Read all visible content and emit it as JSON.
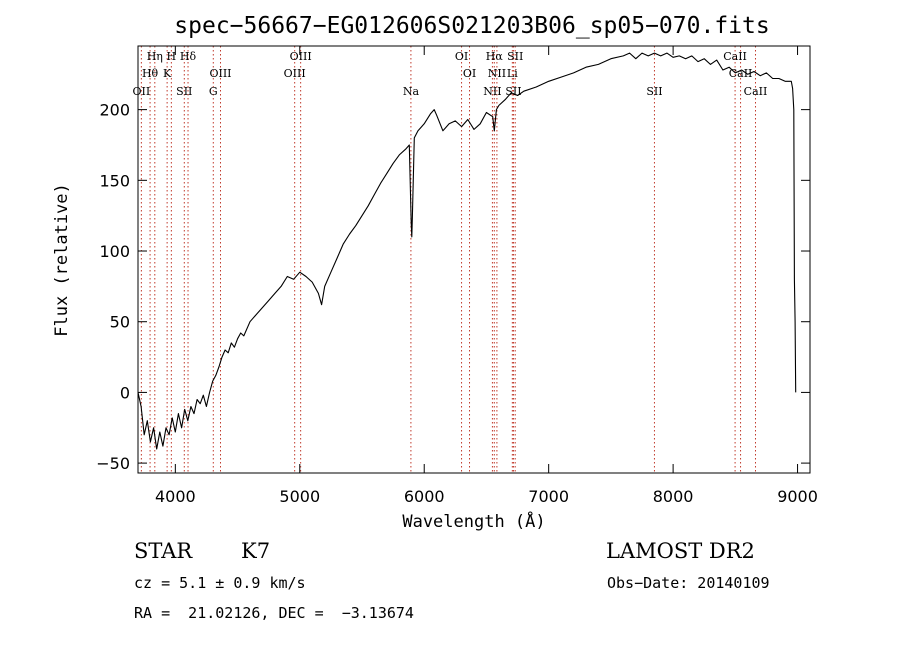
{
  "chart_data": {
    "type": "line",
    "title": "spec−56667−EG012606S021203B06_sp05−070.fits",
    "xlabel": "Wavelength (Å)",
    "ylabel": "Flux (relative)",
    "xlim": [
      3700,
      9100
    ],
    "ylim": [
      -57,
      245
    ],
    "xticks": [
      4000,
      5000,
      6000,
      7000,
      8000,
      9000
    ],
    "yticks": [
      -50,
      0,
      50,
      100,
      150,
      200
    ],
    "grid": false,
    "series": [
      {
        "color": "#000000",
        "points": [
          [
            3700,
            0
          ],
          [
            3725,
            -10
          ],
          [
            3750,
            -30
          ],
          [
            3775,
            -20
          ],
          [
            3800,
            -35
          ],
          [
            3825,
            -25
          ],
          [
            3850,
            -40
          ],
          [
            3875,
            -28
          ],
          [
            3900,
            -38
          ],
          [
            3925,
            -25
          ],
          [
            3950,
            -30
          ],
          [
            3975,
            -18
          ],
          [
            4000,
            -28
          ],
          [
            4025,
            -15
          ],
          [
            4050,
            -25
          ],
          [
            4075,
            -12
          ],
          [
            4100,
            -20
          ],
          [
            4125,
            -10
          ],
          [
            4150,
            -15
          ],
          [
            4175,
            -5
          ],
          [
            4200,
            -8
          ],
          [
            4225,
            -2
          ],
          [
            4250,
            -10
          ],
          [
            4275,
            0
          ],
          [
            4300,
            8
          ],
          [
            4325,
            12
          ],
          [
            4350,
            18
          ],
          [
            4375,
            25
          ],
          [
            4400,
            30
          ],
          [
            4425,
            28
          ],
          [
            4450,
            35
          ],
          [
            4475,
            32
          ],
          [
            4500,
            38
          ],
          [
            4525,
            42
          ],
          [
            4550,
            40
          ],
          [
            4600,
            50
          ],
          [
            4650,
            55
          ],
          [
            4700,
            60
          ],
          [
            4750,
            65
          ],
          [
            4800,
            70
          ],
          [
            4850,
            75
          ],
          [
            4900,
            82
          ],
          [
            4950,
            80
          ],
          [
            5000,
            85
          ],
          [
            5050,
            82
          ],
          [
            5100,
            78
          ],
          [
            5150,
            70
          ],
          [
            5175,
            62
          ],
          [
            5200,
            75
          ],
          [
            5250,
            85
          ],
          [
            5300,
            95
          ],
          [
            5350,
            105
          ],
          [
            5400,
            112
          ],
          [
            5450,
            118
          ],
          [
            5500,
            125
          ],
          [
            5550,
            132
          ],
          [
            5600,
            140
          ],
          [
            5650,
            148
          ],
          [
            5700,
            155
          ],
          [
            5750,
            162
          ],
          [
            5800,
            168
          ],
          [
            5850,
            172
          ],
          [
            5880,
            175
          ],
          [
            5895,
            120
          ],
          [
            5900,
            110
          ],
          [
            5905,
            125
          ],
          [
            5920,
            180
          ],
          [
            5950,
            185
          ],
          [
            6000,
            190
          ],
          [
            6050,
            197
          ],
          [
            6080,
            200
          ],
          [
            6100,
            196
          ],
          [
            6150,
            185
          ],
          [
            6200,
            190
          ],
          [
            6250,
            192
          ],
          [
            6300,
            188
          ],
          [
            6350,
            193
          ],
          [
            6400,
            186
          ],
          [
            6450,
            190
          ],
          [
            6500,
            198
          ],
          [
            6550,
            195
          ],
          [
            6563,
            185
          ],
          [
            6580,
            200
          ],
          [
            6600,
            203
          ],
          [
            6650,
            207
          ],
          [
            6700,
            212
          ],
          [
            6750,
            210
          ],
          [
            6800,
            213
          ],
          [
            6900,
            216
          ],
          [
            7000,
            220
          ],
          [
            7100,
            223
          ],
          [
            7200,
            226
          ],
          [
            7300,
            230
          ],
          [
            7400,
            232
          ],
          [
            7500,
            236
          ],
          [
            7600,
            238
          ],
          [
            7650,
            240
          ],
          [
            7700,
            236
          ],
          [
            7750,
            240
          ],
          [
            7800,
            238
          ],
          [
            7850,
            240
          ],
          [
            7900,
            238
          ],
          [
            7950,
            240
          ],
          [
            8000,
            237
          ],
          [
            8050,
            238
          ],
          [
            8100,
            236
          ],
          [
            8150,
            238
          ],
          [
            8200,
            234
          ],
          [
            8250,
            236
          ],
          [
            8300,
            232
          ],
          [
            8350,
            235
          ],
          [
            8400,
            228
          ],
          [
            8450,
            230
          ],
          [
            8500,
            226
          ],
          [
            8550,
            228
          ],
          [
            8600,
            225
          ],
          [
            8650,
            227
          ],
          [
            8700,
            224
          ],
          [
            8750,
            226
          ],
          [
            8800,
            222
          ],
          [
            8850,
            222
          ],
          [
            8900,
            220
          ],
          [
            8950,
            220
          ],
          [
            8960,
            215
          ],
          [
            8970,
            200
          ],
          [
            8975,
            80
          ],
          [
            8980,
            50
          ],
          [
            8985,
            0
          ]
        ]
      }
    ],
    "marker_lines": [
      {
        "label": "Hη",
        "x": 3835
      },
      {
        "label": "Hθ",
        "x": 3797
      },
      {
        "label": "OII",
        "x": 3727
      },
      {
        "label": "H",
        "x": 3968
      },
      {
        "label": "K",
        "x": 3934
      },
      {
        "label": "SII",
        "x": 4072
      },
      {
        "label": "Hδ",
        "x": 4102
      },
      {
        "label": "OIII",
        "x": 4363
      },
      {
        "label": "G",
        "x": 4305
      },
      {
        "label": "OIII",
        "x": 5007
      },
      {
        "label": "OIII",
        "x": 4959
      },
      {
        "label": "Na",
        "x": 5893
      },
      {
        "label": "OI",
        "x": 6300
      },
      {
        "label": "OI",
        "x": 6364
      },
      {
        "label": "NII",
        "x": 6548
      },
      {
        "label": "Hα",
        "x": 6563
      },
      {
        "label": "NII",
        "x": 6584
      },
      {
        "label": "SII",
        "x": 6717
      },
      {
        "label": "SII",
        "x": 6731
      },
      {
        "label": "Li",
        "x": 6708
      },
      {
        "label": "SII",
        "x": 7850
      },
      {
        "label": "CaII",
        "x": 8498
      },
      {
        "label": "CaII",
        "x": 8542
      },
      {
        "label": "CaII",
        "x": 8662
      }
    ]
  },
  "info": {
    "class": "STAR",
    "subclass": "K7",
    "survey": "LAMOST DR2",
    "cz": "cz = 5.1 ± 0.9 km/s",
    "obs_date": "Obs−Date: 20140109",
    "radec": "RA =  21.02126, DEC =  −3.13674"
  }
}
